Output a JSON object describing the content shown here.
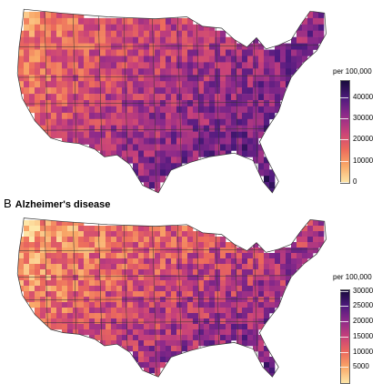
{
  "panel_a": {
    "letter": "",
    "title": "",
    "legend": {
      "title": "per 100,000",
      "min": 0,
      "max": 48000,
      "ticks": [
        {
          "label": "40000",
          "value": 40000
        },
        {
          "label": "30000",
          "value": 30000
        },
        {
          "label": "20000",
          "value": 20000
        },
        {
          "label": "10000",
          "value": 10000
        },
        {
          "label": "0",
          "value": 0
        }
      ]
    }
  },
  "panel_b": {
    "letter": "B",
    "title": "Alzheimer's disease",
    "legend": {
      "title": "per 100,000",
      "min": 0,
      "max": 30500,
      "ticks": [
        {
          "label": "30000",
          "value": 30000
        },
        {
          "label": "25000",
          "value": 25000
        },
        {
          "label": "20000",
          "value": 20000
        },
        {
          "label": "15000",
          "value": 15000
        },
        {
          "label": "10000",
          "value": 10000
        },
        {
          "label": "5000",
          "value": 5000
        }
      ]
    }
  },
  "colors": {
    "scale": [
      "#fde6a8",
      "#f9a868",
      "#ec6a5c",
      "#c7417a",
      "#8d2a8a",
      "#4f1a7e",
      "#170b3b"
    ],
    "state_border": "#333333"
  }
}
